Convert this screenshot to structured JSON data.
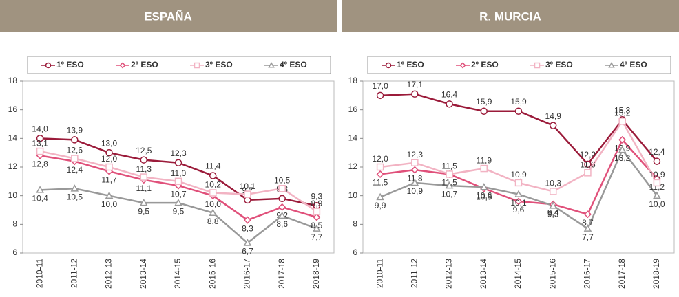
{
  "chart_data": [
    {
      "type": "line",
      "title": "ESPAÑA",
      "categories": [
        "2010-11",
        "2011-12",
        "2012-13",
        "2013-14",
        "2014-15",
        "2015-16",
        "2016-17",
        "2017-18",
        "2018-19"
      ],
      "ylim": [
        6,
        18
      ],
      "yticks": [
        6,
        8,
        10,
        12,
        14,
        16,
        18
      ],
      "series": [
        {
          "name": "1º ESO",
          "color": "#9b1b3a",
          "values": [
            14.0,
            13.9,
            13.0,
            12.5,
            12.3,
            11.4,
            9.7,
            9.8,
            9.3
          ],
          "value_labels": [
            "14,0",
            "13,9",
            "13,0",
            "12,5",
            "12,3",
            "11,4",
            "9,7",
            "9,8",
            "9,3"
          ]
        },
        {
          "name": "2º ESO",
          "color": "#e0507a",
          "values": [
            12.8,
            12.4,
            11.7,
            11.1,
            10.7,
            10.0,
            8.3,
            9.2,
            8.5
          ],
          "value_labels": [
            "12,8",
            "12,4",
            "11,7",
            "11,1",
            "10,7",
            "10,0",
            "8,3",
            "9,2",
            "8,5"
          ]
        },
        {
          "name": "3º ESO",
          "color": "#f2b3c3",
          "values": [
            13.1,
            12.6,
            12.0,
            11.3,
            11.0,
            10.2,
            10.1,
            10.5,
            8.9
          ],
          "value_labels": [
            "13,1",
            "12,6",
            "12,0",
            "11,3",
            "11,0",
            "10,2",
            "10,1",
            "10,5",
            "8,9"
          ]
        },
        {
          "name": "4º ESO",
          "color": "#999999",
          "values": [
            10.4,
            10.5,
            10.0,
            9.5,
            9.5,
            8.8,
            6.7,
            8.6,
            7.7
          ],
          "value_labels": [
            "10,4",
            "10,5",
            "10,0",
            "9,5",
            "9,5",
            "8,8",
            "6,7",
            "8,6",
            "7,7"
          ]
        }
      ]
    },
    {
      "type": "line",
      "title": "R. MURCIA",
      "categories": [
        "2010-11",
        "2011-12",
        "2012-13",
        "2013-14",
        "2014-15",
        "2015-16",
        "2016-17",
        "2017-18",
        "2018-19"
      ],
      "ylim": [
        6,
        18
      ],
      "yticks": [
        6,
        8,
        10,
        12,
        14,
        16,
        18
      ],
      "series": [
        {
          "name": "1º ESO",
          "color": "#9b1b3a",
          "values": [
            17.0,
            17.1,
            16.4,
            15.9,
            15.9,
            14.9,
            12.2,
            15.3,
            12.4
          ],
          "value_labels": [
            "17,0",
            "17,1",
            "16,4",
            "15,9",
            "15,9",
            "14,9",
            "12,2",
            "15,3",
            "12,4"
          ]
        },
        {
          "name": "2º ESO",
          "color": "#e0507a",
          "values": [
            11.5,
            11.8,
            11.5,
            10.5,
            9.6,
            9.4,
            8.7,
            13.9,
            11.2
          ],
          "value_labels": [
            "11,5",
            "11,8",
            "11,5",
            "10,5",
            "9,6",
            "9,4",
            "8,7",
            "13,9",
            "11,2"
          ]
        },
        {
          "name": "3º ESO",
          "color": "#f2b3c3",
          "values": [
            12.0,
            12.3,
            11.5,
            11.9,
            10.9,
            10.3,
            11.6,
            15.2,
            10.9
          ],
          "value_labels": [
            "12,0",
            "12,3",
            "11,5",
            "11,9",
            "10,9",
            "10,3",
            "11,6",
            "15,2",
            "10,9"
          ]
        },
        {
          "name": "4º ESO",
          "color": "#999999",
          "values": [
            9.9,
            10.9,
            10.7,
            10.6,
            10.1,
            9.3,
            7.7,
            13.2,
            10.0
          ],
          "value_labels": [
            "9,9",
            "10,9",
            "10,7",
            "10,6",
            "10,1",
            "9,3",
            "7,7",
            "13,2",
            "10,0"
          ]
        }
      ]
    }
  ]
}
